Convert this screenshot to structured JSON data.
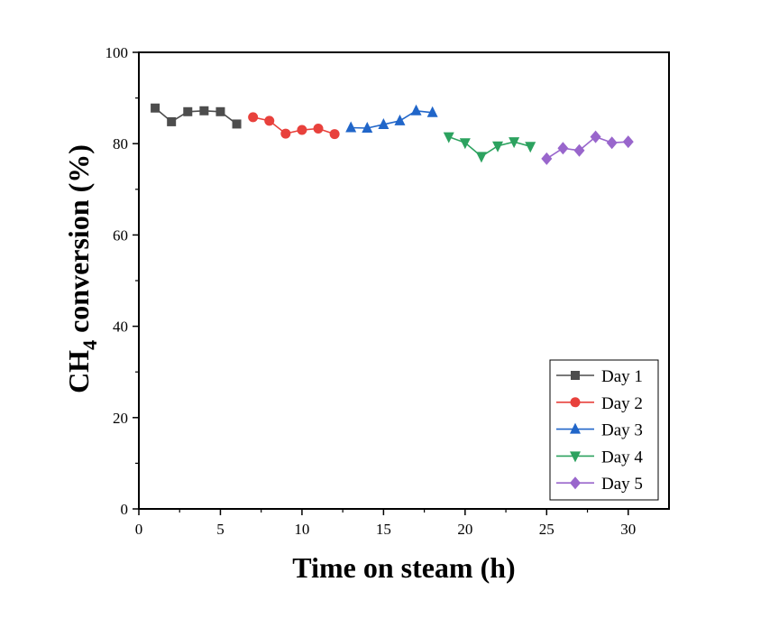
{
  "chart_data": {
    "type": "line",
    "title": "",
    "xlabel": "Time on steam (h)",
    "ylabel_main": "CH",
    "ylabel_sub": "4",
    "ylabel_rest": " conversion (%)",
    "xlim": [
      0,
      32.5
    ],
    "ylim": [
      0,
      100
    ],
    "xticks": [
      0,
      5,
      10,
      15,
      20,
      25,
      30
    ],
    "yticks": [
      0,
      20,
      40,
      60,
      80,
      100
    ],
    "grid": false,
    "legend_position": "bottom-right",
    "series": [
      {
        "name": "Day 1",
        "marker": "square",
        "color": "#4d4d4d",
        "x": [
          1,
          2,
          3,
          4,
          5,
          6
        ],
        "y": [
          87.8,
          84.8,
          87.0,
          87.2,
          87.0,
          84.3
        ]
      },
      {
        "name": "Day 2",
        "marker": "circle",
        "color": "#e8413c",
        "x": [
          7,
          8,
          9,
          10,
          11,
          12
        ],
        "y": [
          85.8,
          85.0,
          82.2,
          83.0,
          83.3,
          82.1
        ]
      },
      {
        "name": "Day 3",
        "marker": "triangle-up",
        "color": "#2166c9",
        "x": [
          13,
          14,
          15,
          16,
          17,
          18
        ],
        "y": [
          83.5,
          83.4,
          84.2,
          85.0,
          87.2,
          86.8
        ]
      },
      {
        "name": "Day 4",
        "marker": "triangle-down",
        "color": "#2ca25f",
        "x": [
          19,
          20,
          21,
          22,
          23,
          24
        ],
        "y": [
          81.5,
          80.2,
          77.2,
          79.5,
          80.4,
          79.4
        ]
      },
      {
        "name": "Day 5",
        "marker": "diamond",
        "color": "#9966cc",
        "x": [
          25,
          26,
          27,
          28,
          29,
          30
        ],
        "y": [
          76.7,
          79.0,
          78.5,
          81.5,
          80.2,
          80.4
        ]
      }
    ]
  }
}
